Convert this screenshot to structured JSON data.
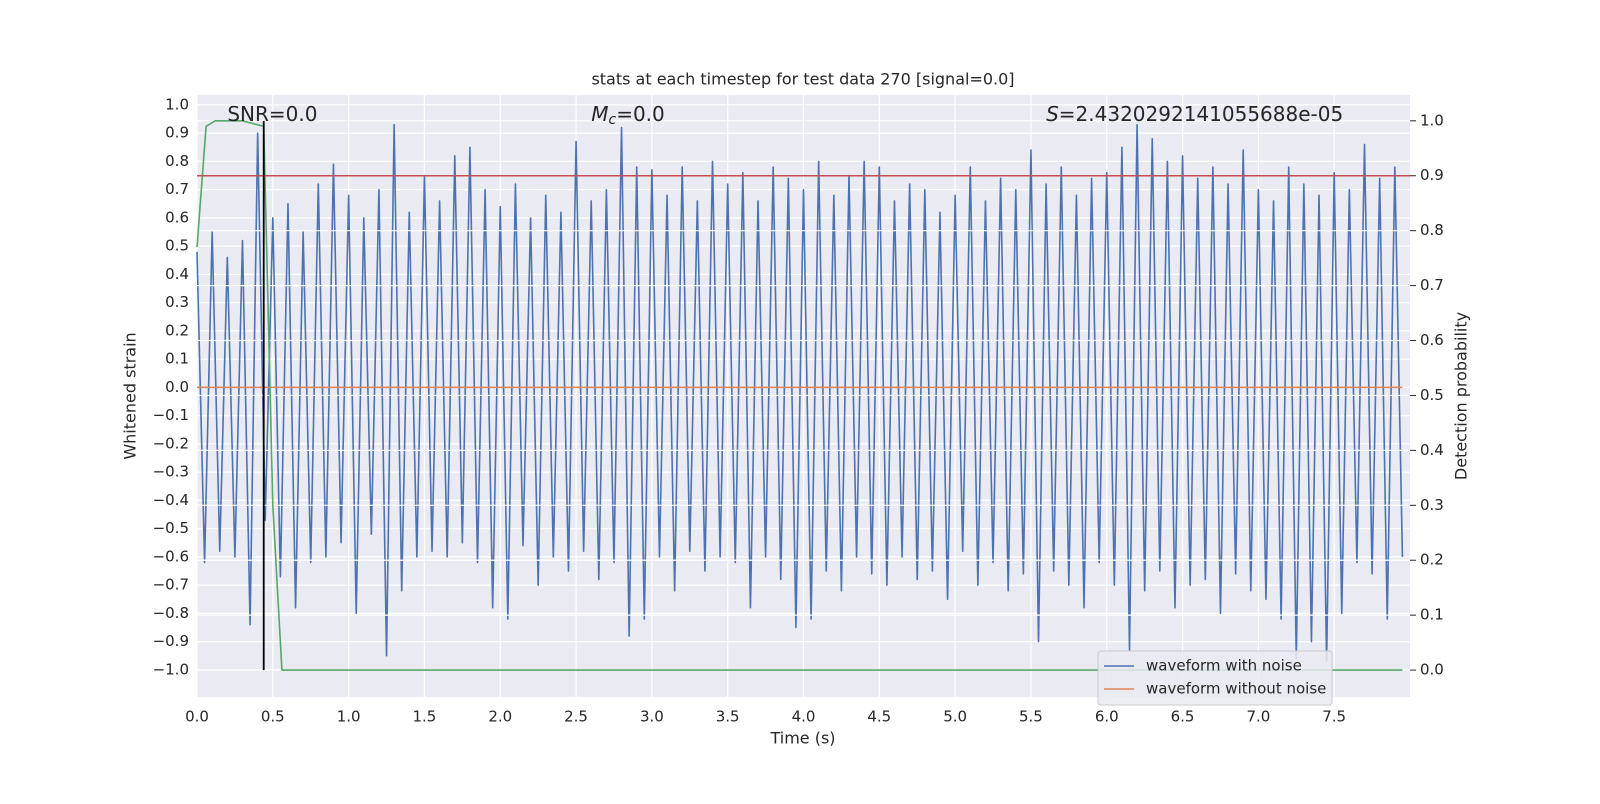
{
  "chart_data": {
    "type": "line",
    "title": "stats at each timestep for test data 270 [signal=0.0]",
    "xlabel": "Time (s)",
    "ylabel": "Whitened strain",
    "y2label": "Detection probability",
    "xlim": [
      0,
      8.0
    ],
    "ylim": [
      -1.096,
      1.035
    ],
    "y2lim": [
      -0.049,
      1.047
    ],
    "xticks": [
      {
        "value": 0,
        "label": "0.0"
      },
      {
        "value": 0.5,
        "label": "0.5"
      },
      {
        "value": 1,
        "label": "1.0"
      },
      {
        "value": 1.5,
        "label": "1.5"
      },
      {
        "value": 2,
        "label": "2.0"
      },
      {
        "value": 2.5,
        "label": "2.5"
      },
      {
        "value": 3,
        "label": "3.0"
      },
      {
        "value": 3.5,
        "label": "3.5"
      },
      {
        "value": 4,
        "label": "4.0"
      },
      {
        "value": 4.5,
        "label": "4.5"
      },
      {
        "value": 5,
        "label": "5.0"
      },
      {
        "value": 5.5,
        "label": "5.5"
      },
      {
        "value": 6,
        "label": "6.0"
      },
      {
        "value": 6.5,
        "label": "6.5"
      },
      {
        "value": 7,
        "label": "7.0"
      },
      {
        "value": 7.5,
        "label": "7.5"
      }
    ],
    "yticks": [
      {
        "value": -1,
        "label": "−1.0"
      },
      {
        "value": -0.9,
        "label": "−0.9"
      },
      {
        "value": -0.8,
        "label": "−0.8"
      },
      {
        "value": -0.7,
        "label": "−0.7"
      },
      {
        "value": -0.6,
        "label": "−0.6"
      },
      {
        "value": -0.5,
        "label": "−0.5"
      },
      {
        "value": -0.4,
        "label": "−0.4"
      },
      {
        "value": -0.3,
        "label": "−0.3"
      },
      {
        "value": -0.2,
        "label": "−0.2"
      },
      {
        "value": -0.1,
        "label": "−0.1"
      },
      {
        "value": 0,
        "label": "0.0"
      },
      {
        "value": 0.1,
        "label": "0.1"
      },
      {
        "value": 0.2,
        "label": "0.2"
      },
      {
        "value": 0.3,
        "label": "0.3"
      },
      {
        "value": 0.4,
        "label": "0.4"
      },
      {
        "value": 0.5,
        "label": "0.5"
      },
      {
        "value": 0.6,
        "label": "0.6"
      },
      {
        "value": 0.7,
        "label": "0.7"
      },
      {
        "value": 0.8,
        "label": "0.8"
      },
      {
        "value": 0.9,
        "label": "0.9"
      },
      {
        "value": 1,
        "label": "1.0"
      }
    ],
    "y2ticks": [
      {
        "value": 0,
        "label": "0.0"
      },
      {
        "value": 0.1,
        "label": "0.1"
      },
      {
        "value": 0.2,
        "label": "0.2"
      },
      {
        "value": 0.3,
        "label": "0.3"
      },
      {
        "value": 0.4,
        "label": "0.4"
      },
      {
        "value": 0.5,
        "label": "0.5"
      },
      {
        "value": 0.6,
        "label": "0.6"
      },
      {
        "value": 0.7,
        "label": "0.7"
      },
      {
        "value": 0.8,
        "label": "0.8"
      },
      {
        "value": 0.9,
        "label": "0.9"
      },
      {
        "value": 1,
        "label": "1.0"
      }
    ],
    "grid": true,
    "legend": "lower right",
    "series": [
      {
        "name": "waveform with noise",
        "color": "#4c72b0",
        "x": [
          0,
          0.05,
          0.1,
          0.15,
          0.2,
          0.25,
          0.3,
          0.35,
          0.4,
          0.45,
          0.5,
          0.55,
          0.6,
          0.65,
          0.7,
          0.75,
          0.8,
          0.85,
          0.9,
          0.95,
          1,
          1.05,
          1.1,
          1.15,
          1.2,
          1.25,
          1.3,
          1.35,
          1.4,
          1.45,
          1.5,
          1.55,
          1.6,
          1.65,
          1.7,
          1.75,
          1.8,
          1.85,
          1.9,
          1.95,
          2,
          2.05,
          2.1,
          2.15,
          2.2,
          2.25,
          2.3,
          2.35,
          2.4,
          2.45,
          2.5,
          2.55,
          2.6,
          2.65,
          2.7,
          2.75,
          2.8,
          2.85,
          2.9,
          2.95,
          3,
          3.05,
          3.1,
          3.15,
          3.2,
          3.25,
          3.3,
          3.35,
          3.4,
          3.45,
          3.5,
          3.55,
          3.6,
          3.65,
          3.7,
          3.75,
          3.8,
          3.85,
          3.9,
          3.95,
          4,
          4.05,
          4.1,
          4.15,
          4.2,
          4.25,
          4.3,
          4.35,
          4.4,
          4.45,
          4.5,
          4.55,
          4.6,
          4.65,
          4.7,
          4.75,
          4.8,
          4.85,
          4.9,
          4.95,
          5,
          5.05,
          5.1,
          5.15,
          5.2,
          5.25,
          5.3,
          5.35,
          5.4,
          5.45,
          5.5,
          5.55,
          5.6,
          5.65,
          5.7,
          5.75,
          5.8,
          5.85,
          5.9,
          5.95,
          6,
          6.05,
          6.1,
          6.15,
          6.2,
          6.25,
          6.3,
          6.35,
          6.4,
          6.45,
          6.5,
          6.55,
          6.6,
          6.65,
          6.7,
          6.75,
          6.8,
          6.85,
          6.9,
          6.95,
          7,
          7.05,
          7.1,
          7.15,
          7.2,
          7.25,
          7.3,
          7.35,
          7.4,
          7.45,
          7.5,
          7.55,
          7.6,
          7.65,
          7.7,
          7.75,
          7.8,
          7.85,
          7.9,
          7.95
        ],
        "values": [
          0.48,
          -0.62,
          0.55,
          -0.58,
          0.46,
          -0.6,
          0.52,
          -0.84,
          0.9,
          -0.47,
          0.6,
          -0.67,
          0.65,
          -0.78,
          0.55,
          -0.62,
          0.72,
          -0.6,
          0.79,
          -0.55,
          0.68,
          -0.8,
          0.6,
          -0.52,
          0.7,
          -0.95,
          0.93,
          -0.72,
          0.62,
          -0.6,
          0.75,
          -0.58,
          0.66,
          -0.6,
          0.82,
          -0.55,
          0.85,
          -0.62,
          0.7,
          -0.78,
          0.64,
          -0.82,
          0.72,
          -0.56,
          0.6,
          -0.7,
          0.68,
          -0.6,
          0.62,
          -0.65,
          0.87,
          -0.58,
          0.66,
          -0.68,
          0.7,
          -0.62,
          0.92,
          -0.88,
          0.78,
          -0.82,
          0.77,
          -0.6,
          0.68,
          -0.72,
          0.78,
          -0.58,
          0.66,
          -0.65,
          0.8,
          -0.6,
          0.72,
          -0.62,
          0.76,
          -0.78,
          0.66,
          -0.6,
          0.78,
          -0.68,
          0.74,
          -0.85,
          0.7,
          -0.82,
          0.8,
          -0.65,
          0.68,
          -0.72,
          0.75,
          -0.6,
          0.8,
          -0.66,
          0.78,
          -0.7,
          0.66,
          -0.6,
          0.72,
          -0.68,
          0.7,
          -0.65,
          0.62,
          -0.75,
          0.68,
          -0.58,
          0.78,
          -0.7,
          0.66,
          -0.62,
          0.74,
          -0.72,
          0.7,
          -0.66,
          0.84,
          -0.9,
          0.72,
          -0.65,
          0.78,
          -0.7,
          0.68,
          -0.78,
          0.74,
          -0.62,
          0.76,
          -0.7,
          0.85,
          -0.93,
          0.93,
          -0.72,
          0.88,
          -0.65,
          0.8,
          -0.78,
          0.82,
          -0.7,
          0.74,
          -0.68,
          0.78,
          -0.8,
          0.72,
          -0.66,
          0.84,
          -0.72,
          0.7,
          -0.75,
          0.66,
          -0.82,
          0.78,
          -0.96,
          0.72,
          -0.9,
          0.68,
          -0.97,
          0.76,
          -0.8,
          0.7,
          -0.62,
          0.86,
          -0.66,
          0.74,
          -0.82,
          0.78,
          -0.6
        ]
      },
      {
        "name": "waveform without noise",
        "color": "#dd8452",
        "x": [
          0,
          7.95
        ],
        "values": [
          0,
          0
        ]
      },
      {
        "color": "#55a868",
        "axis": "y2",
        "x": [
          0,
          0.06,
          0.12,
          0.2,
          0.3,
          0.44,
          0.5,
          0.56,
          7.95
        ],
        "values": [
          0.77,
          0.99,
          1.0,
          1.0,
          1.0,
          0.99,
          0.3,
          0.0,
          0.0
        ]
      }
    ],
    "hline": {
      "axis": "y2",
      "value": 0.9,
      "color": "#c44e52"
    },
    "vline": {
      "x": 0.44,
      "y2": [
        0,
        1
      ],
      "color": "#000000"
    },
    "annotations": [
      {
        "text": "SNR=0.0",
        "x": 0.2
      },
      {
        "symbol": "M",
        "subscript": "c",
        "text": "=0.0",
        "x": 2.6
      },
      {
        "symbol": "S",
        "text": "=2.4320292141055688e-05",
        "x": 5.6
      }
    ]
  }
}
